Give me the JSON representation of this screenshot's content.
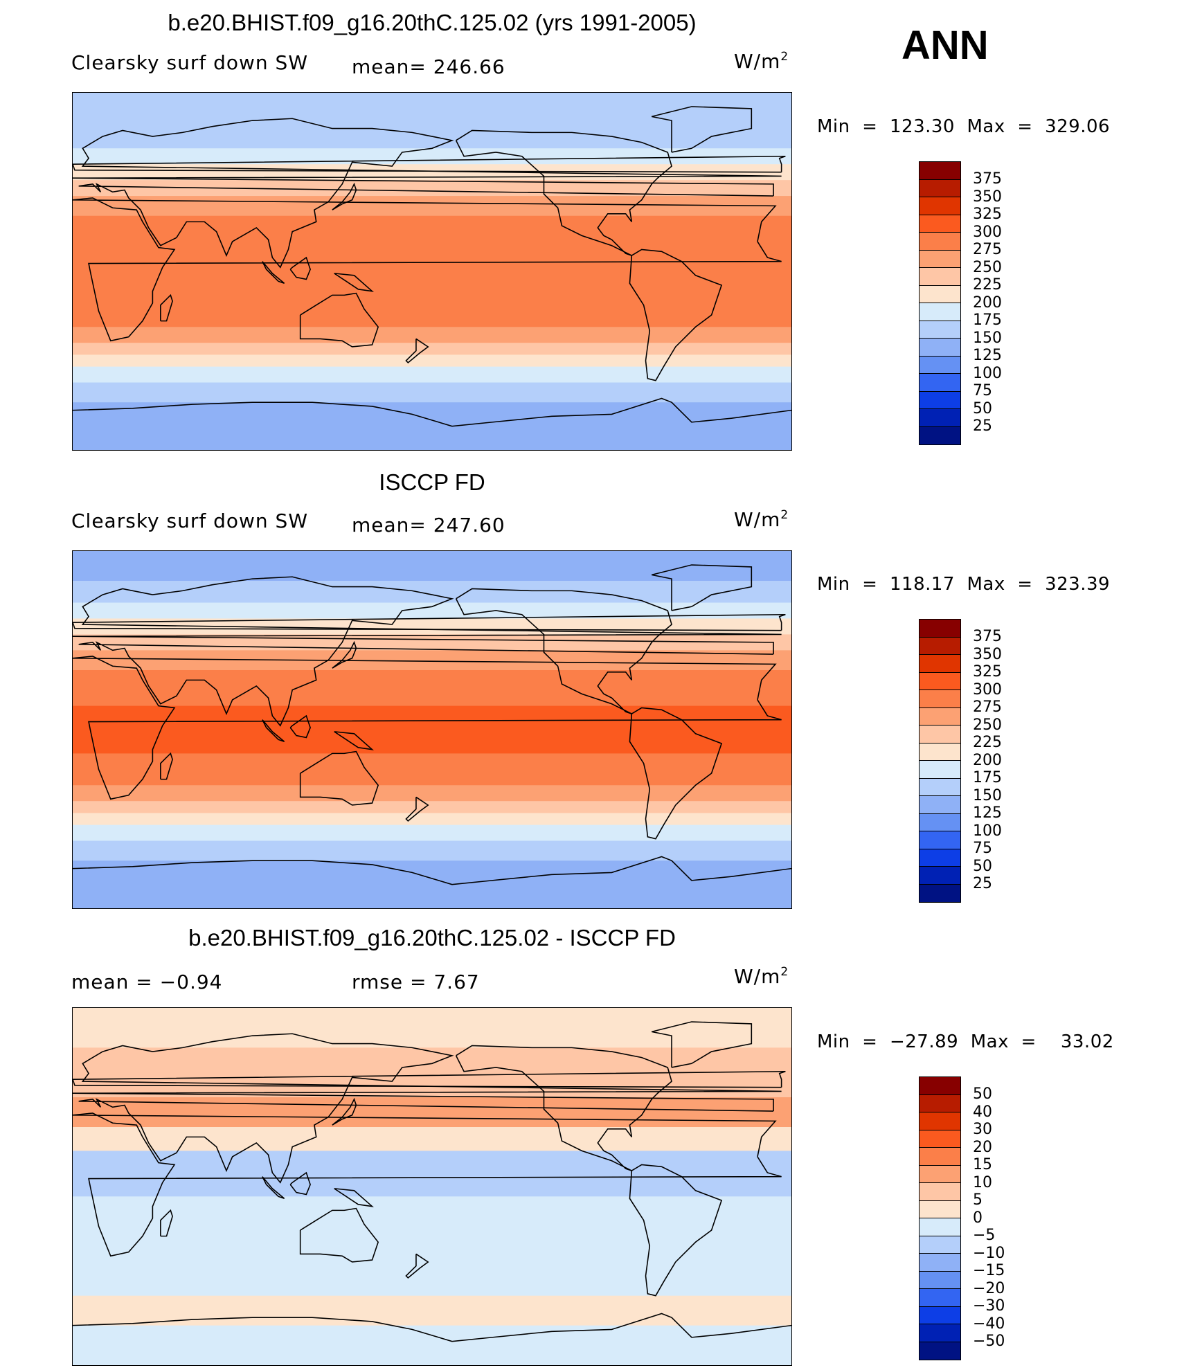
{
  "season": "ANN",
  "unit_base": "W/m",
  "unit_exp": "2",
  "panels": [
    {
      "title": "b.e20.BHIST.f09_g16.20thC.125.02 (yrs 1991-2005)",
      "variable": "Clearsky  surf  down  SW",
      "stat1": "mean=  246.66",
      "minmax": "Min  =  123.30  Max  =  329.06",
      "colorbar": {
        "labels": [
          "375",
          "350",
          "325",
          "300",
          "275",
          "250",
          "225",
          "200",
          "175",
          "150",
          "125",
          "100",
          "75",
          "50",
          "25"
        ],
        "colors": [
          "#870000",
          "#b71c00",
          "#e03500",
          "#fb5a1f",
          "#fb7f49",
          "#fca173",
          "#fec6a6",
          "#fde4cd",
          "#d7ebfa",
          "#b4cffa",
          "#8fb1f6",
          "#6591f3",
          "#3365f2",
          "#0d3ee6",
          "#0021b4",
          "#001283"
        ]
      },
      "bands": [
        {
          "lat_from": 90,
          "lat_to": 75,
          "value": 150
        },
        {
          "lat_from": 75,
          "lat_to": 62,
          "value": 165
        },
        {
          "lat_from": 62,
          "lat_to": 54,
          "value": 190
        },
        {
          "lat_from": 54,
          "lat_to": 46,
          "value": 215
        },
        {
          "lat_from": 46,
          "lat_to": 38,
          "value": 240
        },
        {
          "lat_from": 38,
          "lat_to": 28,
          "value": 265
        },
        {
          "lat_from": 28,
          "lat_to": -28,
          "value": 285
        },
        {
          "lat_from": -28,
          "lat_to": -36,
          "value": 265
        },
        {
          "lat_from": -36,
          "lat_to": -42,
          "value": 240
        },
        {
          "lat_from": -42,
          "lat_to": -48,
          "value": 215
        },
        {
          "lat_from": -48,
          "lat_to": -56,
          "value": 190
        },
        {
          "lat_from": -56,
          "lat_to": -66,
          "value": 165
        },
        {
          "lat_from": -66,
          "lat_to": -90,
          "value": 140
        }
      ]
    },
    {
      "title": "ISCCP FD",
      "variable": "Clearsky  surf  down  SW",
      "stat1": "mean=  247.60",
      "minmax": "Min  =  118.17  Max  =  323.39",
      "colorbar": {
        "labels": [
          "375",
          "350",
          "325",
          "300",
          "275",
          "250",
          "225",
          "200",
          "175",
          "150",
          "125",
          "100",
          "75",
          "50",
          "25"
        ],
        "colors": [
          "#870000",
          "#b71c00",
          "#e03500",
          "#fb5a1f",
          "#fb7f49",
          "#fca173",
          "#fec6a6",
          "#fde4cd",
          "#d7ebfa",
          "#b4cffa",
          "#8fb1f6",
          "#6591f3",
          "#3365f2",
          "#0d3ee6",
          "#0021b4",
          "#001283"
        ]
      },
      "bands": [
        {
          "lat_from": 90,
          "lat_to": 75,
          "value": 140
        },
        {
          "lat_from": 75,
          "lat_to": 64,
          "value": 160
        },
        {
          "lat_from": 64,
          "lat_to": 56,
          "value": 190
        },
        {
          "lat_from": 56,
          "lat_to": 48,
          "value": 215
        },
        {
          "lat_from": 48,
          "lat_to": 40,
          "value": 240
        },
        {
          "lat_from": 40,
          "lat_to": 30,
          "value": 265
        },
        {
          "lat_from": 30,
          "lat_to": 12,
          "value": 285
        },
        {
          "lat_from": 12,
          "lat_to": -12,
          "value": 310
        },
        {
          "lat_from": -12,
          "lat_to": -28,
          "value": 285
        },
        {
          "lat_from": -28,
          "lat_to": -36,
          "value": 265
        },
        {
          "lat_from": -36,
          "lat_to": -42,
          "value": 240
        },
        {
          "lat_from": -42,
          "lat_to": -48,
          "value": 215
        },
        {
          "lat_from": -48,
          "lat_to": -56,
          "value": 190
        },
        {
          "lat_from": -56,
          "lat_to": -66,
          "value": 165
        },
        {
          "lat_from": -66,
          "lat_to": -90,
          "value": 140
        }
      ]
    },
    {
      "title": "b.e20.BHIST.f09_g16.20thC.125.02 - ISCCP FD",
      "variable": "mean  =    −0.94",
      "stat1": "rmse  =     7.67",
      "minmax": "Min  =  −27.89  Max  =    33.02",
      "colorbar": {
        "labels": [
          "50",
          "40",
          "30",
          "20",
          "15",
          "10",
          "5",
          "0",
          "−5",
          "−10",
          "−15",
          "−20",
          "−30",
          "−40",
          "−50"
        ],
        "colors": [
          "#870000",
          "#b71c00",
          "#e03500",
          "#fb5a1f",
          "#fb7f49",
          "#fca173",
          "#fec6a6",
          "#fde4cd",
          "#d7ebfa",
          "#b4cffa",
          "#8fb1f6",
          "#6591f3",
          "#3365f2",
          "#0d3ee6",
          "#0021b4",
          "#001283"
        ]
      },
      "bands": [
        {
          "lat_from": 90,
          "lat_to": 70,
          "value": 3
        },
        {
          "lat_from": 70,
          "lat_to": 45,
          "value": 7
        },
        {
          "lat_from": 45,
          "lat_to": 30,
          "value": 12
        },
        {
          "lat_from": 30,
          "lat_to": 18,
          "value": 3
        },
        {
          "lat_from": 18,
          "lat_to": -5,
          "value": -8
        },
        {
          "lat_from": -5,
          "lat_to": -25,
          "value": -5
        },
        {
          "lat_from": -25,
          "lat_to": -55,
          "value": -3
        },
        {
          "lat_from": -55,
          "lat_to": -70,
          "value": 3
        },
        {
          "lat_from": -70,
          "lat_to": -90,
          "value": -3
        }
      ]
    }
  ]
}
